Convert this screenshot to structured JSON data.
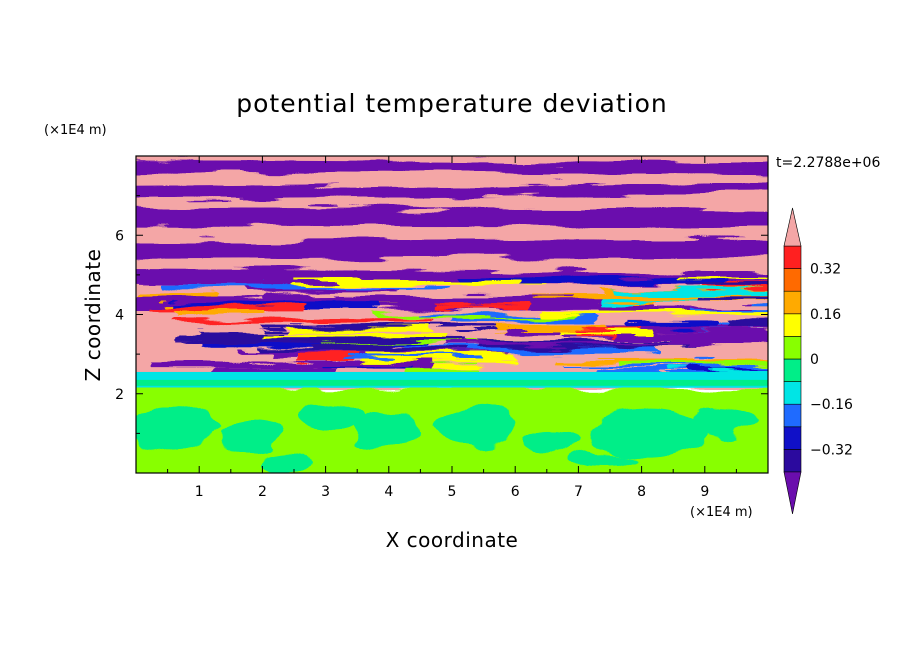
{
  "chart_data": {
    "type": "heatmap",
    "title": "potential temperature deviation",
    "xlabel": "X coordinate",
    "ylabel": "Z coordinate",
    "x_unit": "(×1E4 m)",
    "y_unit": "(×1E4 m)",
    "time_label": "t=2.2788e+06",
    "xlim": [
      0,
      10
    ],
    "ylim": [
      0,
      8
    ],
    "x_ticks": [
      1,
      2,
      3,
      4,
      5,
      6,
      7,
      8,
      9
    ],
    "y_ticks": [
      2,
      4,
      6
    ],
    "colorbar": {
      "levels": [
        -0.4,
        -0.32,
        -0.24,
        -0.16,
        -0.08,
        0,
        0.08,
        0.16,
        0.24,
        0.32,
        0.4
      ],
      "tick_labels": [
        "0.32",
        "0.16",
        "0",
        "−0.16",
        "−0.32"
      ],
      "tick_values": [
        0.32,
        0.16,
        0,
        -0.16,
        -0.32
      ],
      "colors": [
        "#6a0dad",
        "#2b0a9e",
        "#1010c8",
        "#1f6bff",
        "#00e5e5",
        "#00ee88",
        "#88ff00",
        "#ffff00",
        "#ffaa00",
        "#ff6a00",
        "#ff2020",
        "#f4a6a6"
      ],
      "extend": "both"
    }
  }
}
